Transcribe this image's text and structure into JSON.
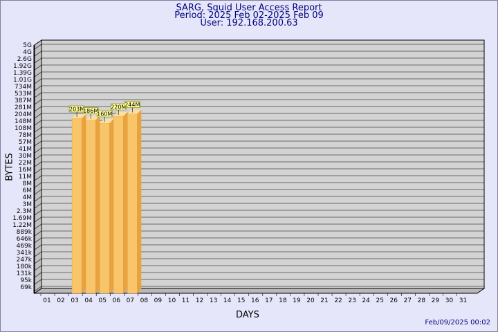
{
  "header": {
    "title": "SARG, Squid User Access Report",
    "period": "Period: 2025 Feb 02-2025 Feb 09",
    "user": "User: 192.168.200.63"
  },
  "footer": {
    "timestamp": "Feb/09/2025 00:02"
  },
  "colors": {
    "page_bg": "#e6e6fa",
    "plot_bg": "#d3d3d3",
    "bar_front": "#f9c56a",
    "bar_side": "#e8a23e",
    "bar_top": "#fde0a0",
    "label_bg": "#ffffa0",
    "title_color": "#000080"
  },
  "chart_data": {
    "type": "bar",
    "xlabel": "DAYS",
    "ylabel": "BYTES",
    "y_scale": "log",
    "grid": true,
    "ytick_labels": [
      "69k",
      "95k",
      "131k",
      "180k",
      "247k",
      "341k",
      "469k",
      "646k",
      "889k",
      "1.22M",
      "1.69M",
      "2.3M",
      "3M",
      "4M",
      "6M",
      "8M",
      "11M",
      "16M",
      "22M",
      "30M",
      "41M",
      "57M",
      "78M",
      "108M",
      "148M",
      "204M",
      "281M",
      "387M",
      "533M",
      "734M",
      "1.01G",
      "1.39G",
      "1.92G",
      "2.6G",
      "4G",
      "5G"
    ],
    "categories": [
      "01",
      "02",
      "03",
      "04",
      "05",
      "06",
      "07",
      "08",
      "09",
      "10",
      "11",
      "12",
      "13",
      "14",
      "15",
      "16",
      "17",
      "18",
      "19",
      "20",
      "21",
      "22",
      "23",
      "24",
      "25",
      "26",
      "27",
      "28",
      "29",
      "30",
      "31"
    ],
    "bars": [
      {
        "day": "03",
        "label": "203M",
        "value_index": 25.0
      },
      {
        "day": "04",
        "label": "186M",
        "value_index": 24.75
      },
      {
        "day": "05",
        "label": "160M",
        "value_index": 24.3
      },
      {
        "day": "06",
        "label": "220M",
        "value_index": 25.3
      },
      {
        "day": "07",
        "label": "244M",
        "value_index": 25.65
      }
    ]
  }
}
